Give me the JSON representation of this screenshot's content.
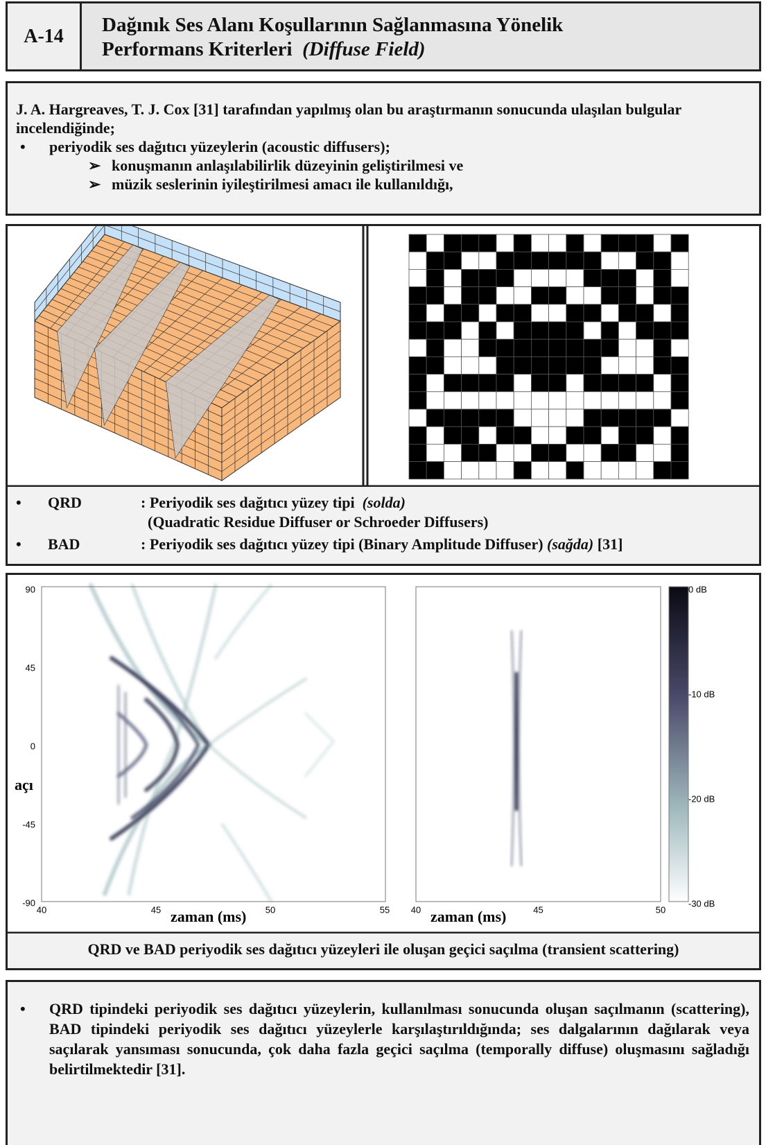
{
  "header": {
    "code": "A-14",
    "title_line1": "Dağınık Ses Alanı Koşullarının Sağlanmasına Yönelik",
    "title_line2": "Performans Kriterleri",
    "title_italic": "(Diffuse Field)"
  },
  "intro": {
    "text": "J. A. Hargreaves, T. J. Cox [31] tarafından yapılmış olan bu araştırmanın sonucunda ulaşılan bulgular incelendiğinde;",
    "bullet": "periyodik ses dağıtıcı yüzeylerin (acoustic diffusers);",
    "subitems": [
      "konuşmanın anlaşılabilirlik düzeyinin geliştirilmesi ve",
      "müzik seslerinin iyileştirilmesi amacı ile kullanıldığı,"
    ]
  },
  "types": [
    {
      "name": "QRD",
      "desc": ": Periyodik ses dağıtıcı yüzey tipi",
      "note": "(solda)",
      "extra": "(Quadratic Residue Diffuser or Schroeder Diffusers)"
    },
    {
      "name": "BAD",
      "desc": ": Periyodik ses dağıtıcı yüzey tipi (Binary Amplitude Diffuser)",
      "note": "(sağda)",
      "ref": "[31]"
    }
  ],
  "plots": {
    "left": {
      "y_label": "açı",
      "x_label": "zaman (ms)",
      "yticks": [
        "90",
        "45",
        "0",
        "-45",
        "-90"
      ],
      "xticks": [
        "40",
        "45",
        "50",
        "55"
      ]
    },
    "right": {
      "x_label": "zaman (ms)",
      "xticks": [
        "40",
        "45",
        "50"
      ],
      "colorbar": [
        "0 dB",
        "-10 dB",
        "-20 dB",
        "-30 dB"
      ]
    },
    "caption": "QRD ve BAD periyodik ses dağıtıcı yüzeyleri ile oluşan geçici saçılma (transient scattering)"
  },
  "conclusion": "QRD tipindeki periyodik ses dağıtıcı yüzeylerin, kullanılması sonucunda oluşan saçılmanın (scattering), BAD tipindeki periyodik ses dağıtıcı yüzeylerle karşılaştırıldığında; ses dalgalarının dağılarak veya saçılarak yansıması sonucunda, çok daha fazla geçici saçılma (temporally diffuse) oluşmasını sağladığı belirtilmektedir [31]."
}
